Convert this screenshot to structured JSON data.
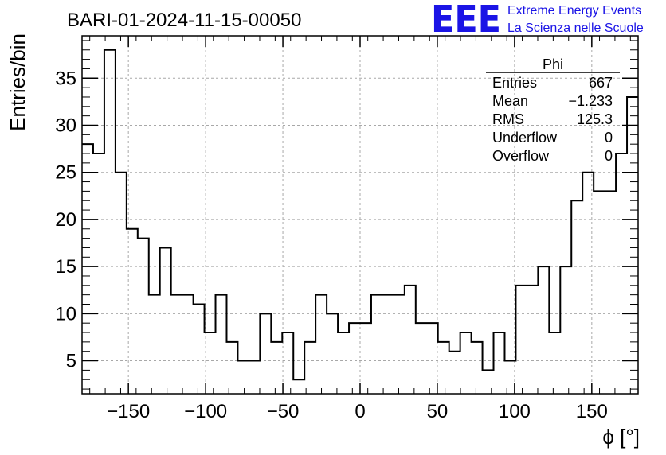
{
  "title": "BARI-01-2024-11-15-00050",
  "logo": {
    "mark": "EEE",
    "line1": "Extreme Energy Events",
    "line2": "La Scienza nelle Scuole",
    "color": "#1b14e6"
  },
  "stats": {
    "name": "Phi",
    "rows": [
      {
        "label": "Entries",
        "value": "667"
      },
      {
        "label": "Mean",
        "value": "−1.233"
      },
      {
        "label": "RMS",
        "value": "125.3"
      },
      {
        "label": "Underflow",
        "value": "0"
      },
      {
        "label": "Overflow",
        "value": "0"
      }
    ]
  },
  "chart_data": {
    "type": "bar",
    "style": "step-histogram",
    "xlabel": "ϕ [°]",
    "ylabel": "Entries/bin",
    "xlim": [
      -180,
      180
    ],
    "ylim": [
      1.5,
      39.5
    ],
    "bin_width": 7.2,
    "bin_edges_start": -180,
    "values": [
      28,
      27,
      38,
      25,
      19,
      18,
      12,
      17,
      12,
      12,
      11,
      8,
      12,
      7,
      5,
      5,
      10,
      7,
      8,
      3,
      7,
      12,
      10,
      8,
      9,
      9,
      12,
      12,
      12,
      13,
      9,
      9,
      7,
      6,
      8,
      7,
      4,
      8,
      5,
      13,
      13,
      15,
      8,
      15,
      22,
      25,
      23,
      23,
      27,
      33
    ],
    "x_ticks": [
      -150,
      -100,
      -50,
      0,
      50,
      100,
      150
    ],
    "x_tick_labels": [
      "−150",
      "−100",
      "−50",
      "0",
      "50",
      "100",
      "150"
    ],
    "y_ticks": [
      5,
      10,
      15,
      20,
      25,
      30,
      35
    ],
    "y_tick_labels": [
      "5",
      "10",
      "15",
      "20",
      "25",
      "30",
      "35"
    ],
    "grid": true,
    "line_color": "#000000"
  }
}
